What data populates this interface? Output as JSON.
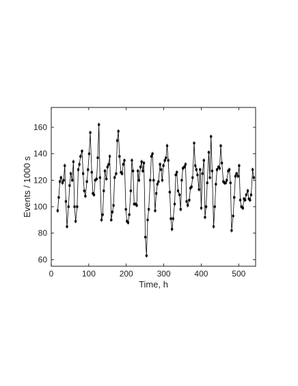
{
  "chart_data": {
    "type": "line",
    "xlabel": "Time, h",
    "ylabel": "Events / 1000 s",
    "xlim": [
      0,
      545
    ],
    "ylim": [
      55,
      175
    ],
    "xticks": [
      0,
      100,
      200,
      300,
      400,
      500
    ],
    "yticks": [
      60,
      80,
      100,
      120,
      140,
      160
    ],
    "grid": false,
    "marker": "filled-square-with-error-bars",
    "line_color": "#000000",
    "series": [
      {
        "x": [
          17,
          20,
          23,
          26,
          30,
          33,
          36,
          39,
          42,
          46,
          49,
          52,
          56,
          59,
          62,
          65,
          69,
          72,
          75,
          78,
          82,
          85,
          88,
          91,
          95,
          98,
          101,
          104,
          108,
          111,
          114,
          117,
          121,
          124,
          127,
          130,
          134,
          137,
          140,
          143,
          147,
          150,
          153,
          156,
          160,
          163,
          166,
          169,
          173,
          176,
          179,
          182,
          186,
          189,
          192,
          195,
          199,
          202,
          205,
          208,
          212,
          215,
          218,
          221,
          225,
          228,
          231,
          234,
          238,
          241,
          244,
          247,
          251,
          254,
          257,
          260,
          264,
          267,
          270,
          273,
          277,
          280,
          283,
          286,
          290,
          293,
          296,
          299,
          303,
          306,
          309,
          312,
          316,
          319,
          322,
          325,
          329,
          332,
          335,
          338,
          342,
          345,
          348,
          351,
          355,
          358,
          361,
          364,
          368,
          371,
          374,
          377,
          381,
          384,
          387,
          390,
          394,
          397,
          400,
          403,
          407,
          410,
          413,
          416,
          420,
          423,
          426,
          429,
          433,
          436,
          439,
          442,
          446,
          449,
          452,
          455,
          459,
          462,
          465,
          468,
          472,
          475,
          478,
          481,
          485,
          488,
          491,
          494,
          498,
          501,
          504,
          507,
          511,
          514,
          517,
          520,
          524,
          527,
          530,
          533,
          537,
          540
        ],
        "values": [
          97,
          107,
          119,
          122,
          118,
          120,
          131,
          104,
          85,
          100,
          116,
          125,
          120,
          134,
          100,
          89,
          100,
          128,
          132,
          138,
          142,
          125,
          112,
          108,
          119,
          128,
          140,
          156,
          126,
          110,
          109,
          120,
          121,
          137,
          162,
          122,
          90,
          94,
          112,
          127,
          121,
          130,
          132,
          138,
          90,
          96,
          101,
          122,
          125,
          150,
          157,
          138,
          126,
          125,
          132,
          135,
          98,
          89,
          88,
          94,
          112,
          135,
          127,
          102,
          102,
          101,
          127,
          120,
          130,
          134,
          127,
          133,
          77,
          63,
          90,
          98,
          120,
          138,
          140,
          120,
          97,
          110,
          117,
          119,
          132,
          128,
          120,
          131,
          135,
          137,
          146,
          135,
          111,
          91,
          83,
          91,
          102,
          124,
          126,
          112,
          109,
          98,
          120,
          129,
          130,
          132,
          104,
          101,
          105,
          114,
          115,
          122,
          148,
          131,
          128,
          124,
          113,
          128,
          99,
          125,
          135,
          92,
          100,
          118,
          141,
          122,
          153,
          127,
          85,
          100,
          117,
          128,
          130,
          129,
          146,
          133,
          119,
          118,
          118,
          120,
          127,
          128,
          118,
          82,
          93,
          107,
          123,
          125,
          123,
          131,
          105,
          100,
          99,
          106,
          105,
          109,
          112,
          106,
          105,
          109,
          128,
          122
        ],
        "errors": [
          1.5,
          1.5,
          1.5,
          1.5,
          1.5,
          1.5,
          1.5,
          1.5,
          1.5,
          1.5,
          1.5,
          1.5,
          1.5,
          1.5,
          1.5,
          1.5,
          1.5,
          1.5,
          1.5,
          1.5,
          1.5,
          1.5,
          1.5,
          1.5,
          1.5,
          1.5,
          1.5,
          1.5,
          1.5,
          1.5,
          1.5,
          1.5,
          1.5,
          1.5,
          1.5,
          1.5,
          1.5,
          1.5,
          1.5,
          1.5,
          1.5,
          1.5,
          1.5,
          1.5,
          1.5,
          1.5,
          1.5,
          1.5,
          1.5,
          1.5,
          1.5,
          1.5,
          1.5,
          1.5,
          1.5,
          1.5,
          1.5,
          1.5,
          1.5,
          1.5,
          1.5,
          1.5,
          1.5,
          1.5,
          1.5,
          1.5,
          1.5,
          1.5,
          1.5,
          1.5,
          1.5,
          1.5,
          1.5,
          1.5,
          1.5,
          1.5,
          1.5,
          1.5,
          1.5,
          1.5,
          1.5,
          1.5,
          1.5,
          1.5,
          1.5,
          1.5,
          1.5,
          1.5,
          1.5,
          1.5,
          1.5,
          1.5,
          1.5,
          1.5,
          1.5,
          1.5,
          1.5,
          1.5,
          1.5,
          1.5,
          1.5,
          1.5,
          1.5,
          1.5,
          1.5,
          1.5,
          1.5,
          1.5,
          1.5,
          1.5,
          1.5,
          1.5,
          1.5,
          1.5,
          1.5,
          1.5,
          1.5,
          1.5,
          1.5,
          1.5,
          1.5,
          1.5,
          1.5,
          1.5,
          1.5,
          1.5,
          1.5,
          1.5,
          1.5,
          1.5,
          1.5,
          1.5,
          1.5,
          1.5,
          1.5,
          1.5,
          1.5,
          1.5,
          1.5,
          1.5,
          1.5,
          1.5,
          1.5,
          1.5,
          1.5,
          1.5,
          1.5,
          1.5,
          1.5,
          1.5,
          1.5,
          1.5,
          1.5,
          1.5,
          1.5,
          1.5,
          1.5,
          1.5,
          1.5,
          1.5,
          1.5,
          1.5
        ]
      }
    ]
  }
}
